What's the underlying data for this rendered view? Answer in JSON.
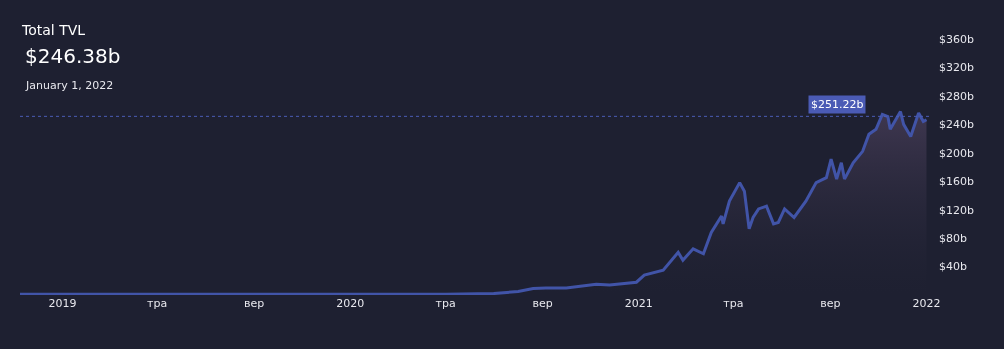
{
  "chart_data": {
    "type": "area",
    "title": "Total TVL",
    "subtitle": "$246.38b",
    "annotations": [
      "January 1, 2022"
    ],
    "x": [
      "2018-11-08",
      "2019-01-01",
      "2019-05-01",
      "2019-09-01",
      "2020-01-01",
      "2020-05-01",
      "2020-07-01",
      "2020-08-01",
      "2020-08-20",
      "2020-09-05",
      "2020-10-01",
      "2020-11-08",
      "2020-11-25",
      "2020-12-29",
      "2021-01-08",
      "2021-02-01",
      "2021-02-20",
      "2021-02-26",
      "2021-03-11",
      "2021-03-24",
      "2021-04-03",
      "2021-04-16",
      "2021-04-18",
      "2021-04-26",
      "2021-05-09",
      "2021-05-15",
      "2021-05-21",
      "2021-05-26",
      "2021-06-02",
      "2021-06-12",
      "2021-06-21",
      "2021-06-27",
      "2021-07-05",
      "2021-07-17",
      "2021-08-01",
      "2021-08-14",
      "2021-08-27",
      "2021-09-02",
      "2021-09-09",
      "2021-09-15",
      "2021-09-19",
      "2021-09-30",
      "2021-10-12",
      "2021-10-20",
      "2021-10-29",
      "2021-11-06",
      "2021-11-13",
      "2021-11-16",
      "2021-11-29",
      "2021-12-03",
      "2021-12-12",
      "2021-12-22",
      "2021-12-28",
      "2022-01-01"
    ],
    "series": [
      {
        "color": "#4154a8",
        "values": [
          1,
          1,
          1,
          1,
          1,
          1,
          2,
          5,
          9,
          10,
          10,
          15,
          14,
          18,
          28,
          35,
          60,
          49,
          65,
          58,
          88,
          111,
          100,
          132,
          158,
          146,
          93,
          109,
          121,
          125,
          100,
          102,
          121,
          109,
          132,
          158,
          165,
          191,
          163,
          186,
          163,
          186,
          202,
          226,
          233,
          254,
          251,
          233,
          258,
          240,
          223,
          256,
          244,
          246.38
        ]
      }
    ],
    "xlim": [
      "2018-11-08",
      "2022-01-08"
    ],
    "xticks": [
      {
        "value": "2019-01-01",
        "label": "2019"
      },
      {
        "value": "2019-05-01",
        "label": "тра"
      },
      {
        "value": "2019-09-01",
        "label": "вер"
      },
      {
        "value": "2020-01-01",
        "label": "2020"
      },
      {
        "value": "2020-05-01",
        "label": "тра"
      },
      {
        "value": "2020-09-01",
        "label": "вер"
      },
      {
        "value": "2021-01-01",
        "label": "2021"
      },
      {
        "value": "2021-05-01",
        "label": "тра"
      },
      {
        "value": "2021-09-01",
        "label": "вер"
      },
      {
        "value": "2022-01-01",
        "label": "2022"
      }
    ],
    "ylim": [
      0,
      360
    ],
    "yticks": [
      {
        "value": 40,
        "label": "$40b"
      },
      {
        "value": 80,
        "label": "$80b"
      },
      {
        "value": 120,
        "label": "$120b"
      },
      {
        "value": 160,
        "label": "$160b"
      },
      {
        "value": 200,
        "label": "$200b"
      },
      {
        "value": 240,
        "label": "$240b"
      },
      {
        "value": 280,
        "label": "$280b"
      },
      {
        "value": 320,
        "label": "$320b"
      },
      {
        "value": 360,
        "label": "$360b"
      }
    ],
    "ref_lines": [
      {
        "axis": "y",
        "value": 251.22,
        "label": "$251.22b",
        "color": "#4b5bb5",
        "line_style": "dotted"
      }
    ],
    "grid": false
  }
}
